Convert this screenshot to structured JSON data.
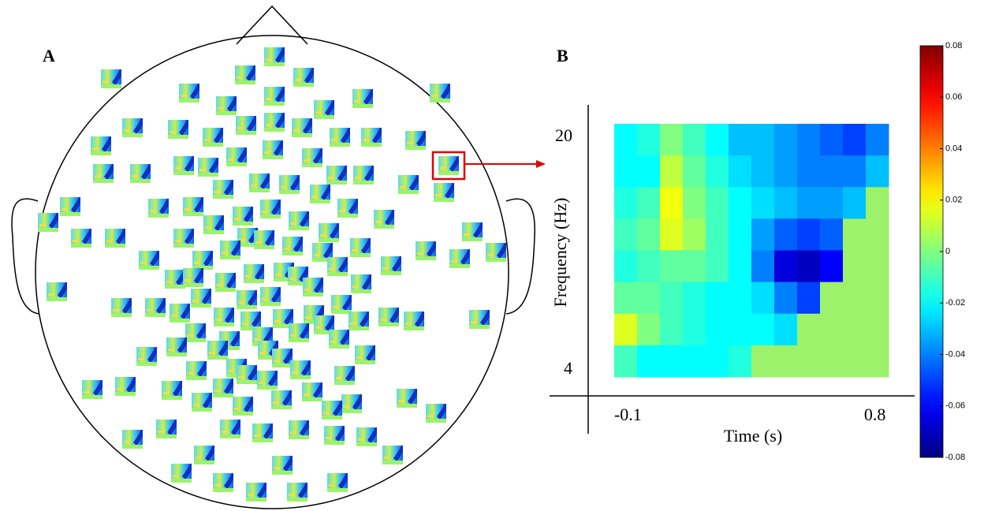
{
  "panel_labels": [
    "A",
    "B"
  ],
  "chart_data": {
    "type": "heatmap",
    "xlabel": "Time (s)",
    "ylabel": "Frequency (Hz)",
    "xlim": [
      -0.15,
      0.85
    ],
    "xticks": [
      -0.1,
      0.8
    ],
    "ylim": [
      3.4,
      20.8
    ],
    "yticks": [
      20,
      4
    ],
    "values": [
      [
        -0.02,
        -0.015,
        0.0,
        -0.01,
        -0.02,
        -0.03,
        -0.03,
        -0.035,
        -0.04,
        -0.045,
        -0.05,
        -0.04
      ],
      [
        -0.02,
        -0.02,
        0.01,
        -0.005,
        -0.015,
        -0.025,
        -0.03,
        -0.035,
        -0.04,
        -0.04,
        -0.04,
        -0.03
      ],
      [
        -0.015,
        -0.01,
        0.018,
        0.0,
        -0.01,
        -0.02,
        -0.025,
        -0.03,
        -0.035,
        -0.035,
        -0.03,
        null
      ],
      [
        -0.01,
        -0.005,
        0.015,
        0.005,
        -0.01,
        -0.02,
        -0.035,
        -0.045,
        -0.05,
        -0.045,
        null,
        null
      ],
      [
        -0.015,
        -0.01,
        -0.005,
        -0.005,
        -0.01,
        -0.02,
        -0.04,
        -0.065,
        -0.07,
        -0.06,
        null,
        null
      ],
      [
        -0.005,
        -0.005,
        -0.01,
        -0.015,
        -0.02,
        -0.02,
        -0.025,
        -0.04,
        -0.05,
        null,
        null,
        null
      ],
      [
        0.015,
        0.0,
        -0.01,
        -0.015,
        -0.02,
        -0.02,
        -0.02,
        -0.025,
        null,
        null,
        null,
        null
      ],
      [
        -0.01,
        -0.02,
        -0.02,
        -0.02,
        -0.02,
        -0.015,
        null,
        null,
        null,
        null,
        null,
        null
      ]
    ],
    "mask_color": "#9cf26a",
    "colormap": "jet",
    "clim": [
      -0.08,
      0.08
    ],
    "cticks": [
      0.08,
      0.06,
      0.04,
      0.02,
      0,
      -0.02,
      -0.04,
      -0.06,
      -0.08
    ]
  }
}
